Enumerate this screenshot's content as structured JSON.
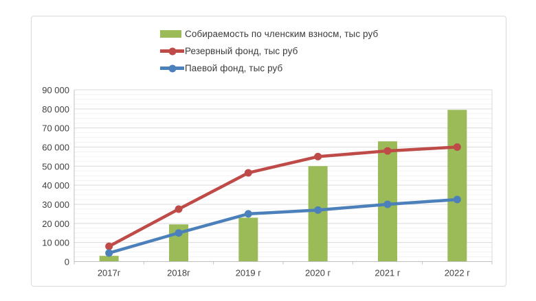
{
  "chart_data": {
    "type": "combo (bar + line)",
    "categories": [
      "2017г",
      "2018г",
      "2019 г",
      "2020 г",
      "2021 г",
      "2022 г"
    ],
    "series": [
      {
        "name": "Собираемость по членским взносм, тыс руб",
        "type": "bar",
        "color": "#9bbb59",
        "values": [
          3000,
          19500,
          23000,
          50000,
          63000,
          79500
        ]
      },
      {
        "name": "Резервный фонд, тыс руб",
        "type": "line",
        "color": "#be4b48",
        "values": [
          8000,
          27500,
          46500,
          55000,
          58000,
          60000
        ]
      },
      {
        "name": "Паевой фонд, тыс руб",
        "type": "line",
        "color": "#4c80bb",
        "values": [
          4500,
          15000,
          25000,
          27000,
          30000,
          32500
        ]
      }
    ],
    "y_axis": {
      "min": 0,
      "max": 90000,
      "major_step": 10000,
      "minor_step": 2500,
      "tick_labels": [
        "0",
        "10 000",
        "20 000",
        "30 000",
        "40 000",
        "50 000",
        "60 000",
        "70 000",
        "80 000",
        "90 000"
      ]
    },
    "xlabel": "",
    "ylabel": "",
    "title": "",
    "legend_position": "top",
    "grid": {
      "major_color": "#d9d9d9",
      "minor_color": "#f2f2f2",
      "axis_color": "#bfbfbf"
    }
  }
}
